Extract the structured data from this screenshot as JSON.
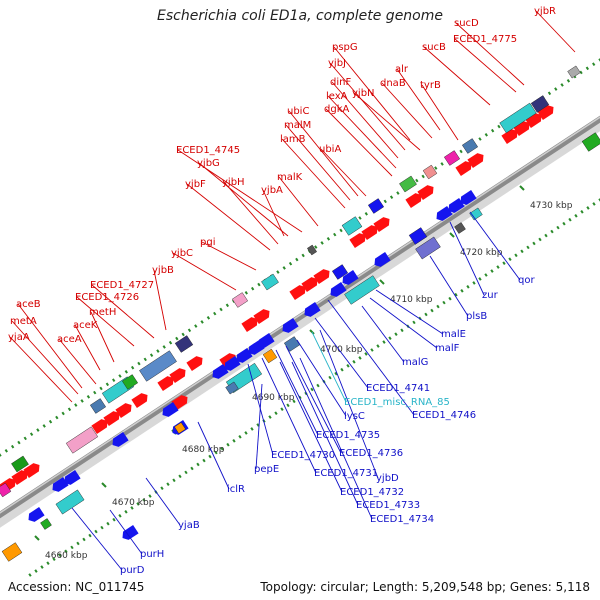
{
  "title": "Escherichia coli ED1a, complete genome",
  "footer": {
    "accession": "Accession: NC_011745",
    "topology": "Topology: circular; Length: 5,209,548 bp; Genes: 5,118"
  },
  "colors": {
    "forward_label": "#d40000",
    "reverse_label": "#1010c8",
    "misc_rna_label": "#28b4c8",
    "forward_gene": "#ff1010",
    "reverse_gene": "#1515ee",
    "backbone": "#8a8a8a"
  },
  "kbp_ticks": [
    "4660 kbp",
    "4670 kbp",
    "4680 kbp",
    "4690 kbp",
    "4700 kbp",
    "4710 kbp",
    "4720 kbp",
    "4730 kbp"
  ],
  "forward_labels": [
    "yjbR",
    "sucD",
    "ECED1_4775",
    "sucB",
    "pspG",
    "yjbJ",
    "alr",
    "dinF",
    "dnaB",
    "lexA",
    "yjbN",
    "tyrB",
    "dgkA",
    "ubiC",
    "malM",
    "ubiA",
    "lamB",
    "ECED1_4745",
    "yjbG",
    "malK",
    "yjbH",
    "yjbF",
    "yjbA",
    "pgi",
    "yjbC",
    "yjbB",
    "ECED1_4727",
    "aceB",
    "ECED1_4726",
    "metA",
    "metH",
    "aceK",
    "yjaA",
    "aceA"
  ],
  "reverse_labels": [
    "qor",
    "zur",
    "plsB",
    "malE",
    "malF",
    "malG",
    "ECED1_4741",
    "ECED1_4746",
    "lysC",
    "ECED1_4735",
    "ECED1_4736",
    "ECED1_4730",
    "ECED1_4731",
    "yjbD",
    "ECED1_4732",
    "ECED1_4733",
    "ECED1_4734",
    "pepE",
    "iclR",
    "yjaB",
    "purH",
    "purD"
  ],
  "misc_labels": [
    "ECED1_misc_RNA_85"
  ]
}
